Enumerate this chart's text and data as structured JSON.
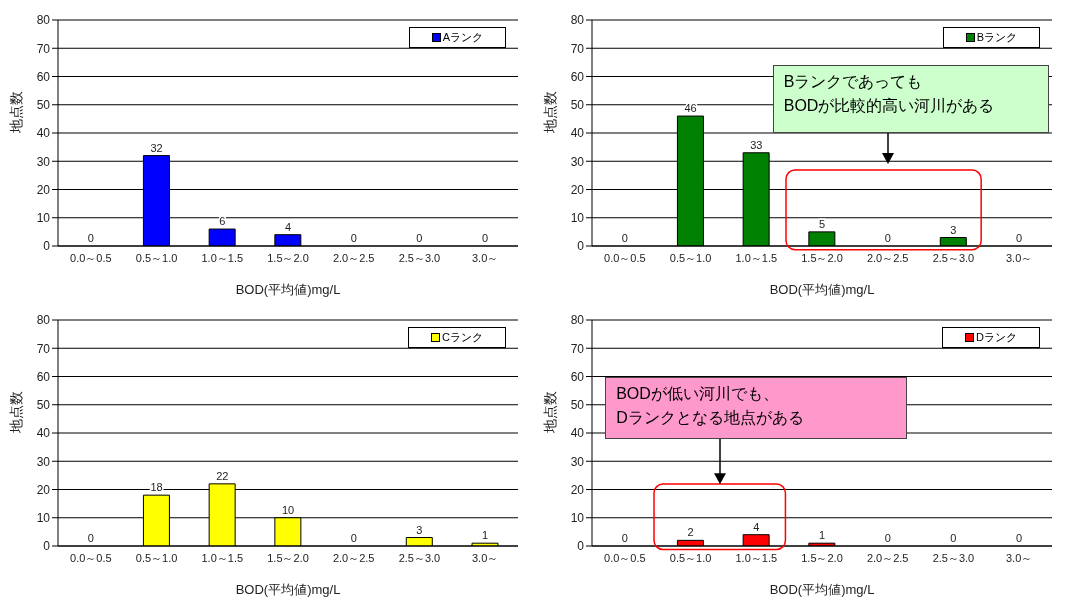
{
  "chart_data": [
    {
      "type": "bar",
      "categories": [
        "0.0～0.5",
        "0.5～1.0",
        "1.0～1.5",
        "1.5～2.0",
        "2.0～2.5",
        "2.5～3.0",
        "3.0～"
      ],
      "series": [
        {
          "name": "Aランク",
          "color": "#0000ff",
          "values": [
            0,
            32,
            6,
            4,
            0,
            0,
            0
          ]
        }
      ],
      "xlabel": "BOD(平均値)mg/L",
      "ylabel": "地点数",
      "ylim": [
        0,
        80
      ],
      "yticks": [
        0,
        10,
        20,
        30,
        40,
        50,
        60,
        70,
        80
      ],
      "grid": "y",
      "legend": "top right",
      "data_labels": true
    },
    {
      "type": "bar",
      "categories": [
        "0.0～0.5",
        "0.5～1.0",
        "1.0～1.5",
        "1.5～2.0",
        "2.0～2.5",
        "2.5～3.0",
        "3.0～"
      ],
      "series": [
        {
          "name": "Bランク",
          "color": "#008000",
          "values": [
            0,
            46,
            33,
            5,
            0,
            3,
            0
          ]
        }
      ],
      "xlabel": "BOD(平均値)mg/L",
      "ylabel": "地点数",
      "ylim": [
        0,
        80
      ],
      "yticks": [
        0,
        10,
        20,
        30,
        40,
        50,
        60,
        70,
        80
      ],
      "grid": "y",
      "legend": "top right",
      "data_labels": true,
      "annotations": [
        "Bランクであっても\nBODが比較的高い河川がある"
      ]
    },
    {
      "type": "bar",
      "categories": [
        "0.0～0.5",
        "0.5～1.0",
        "1.0～1.5",
        "1.5～2.0",
        "2.0～2.5",
        "2.5～3.0",
        "3.0～"
      ],
      "series": [
        {
          "name": "Cランク",
          "color": "#ffff00",
          "values": [
            0,
            18,
            22,
            10,
            0,
            3,
            1
          ]
        }
      ],
      "xlabel": "BOD(平均値)mg/L",
      "ylabel": "地点数",
      "ylim": [
        0,
        80
      ],
      "yticks": [
        0,
        10,
        20,
        30,
        40,
        50,
        60,
        70,
        80
      ],
      "grid": "y",
      "legend": "top right",
      "data_labels": true
    },
    {
      "type": "bar",
      "categories": [
        "0.0～0.5",
        "0.5～1.0",
        "1.0～1.5",
        "1.5～2.0",
        "2.0～2.5",
        "2.5～3.0",
        "3.0～"
      ],
      "series": [
        {
          "name": "Dランク",
          "color": "#ff0000",
          "values": [
            0,
            2,
            4,
            1,
            0,
            0,
            0
          ]
        }
      ],
      "xlabel": "BOD(平均値)mg/L",
      "ylabel": "地点数",
      "ylim": [
        0,
        80
      ],
      "yticks": [
        0,
        10,
        20,
        30,
        40,
        50,
        60,
        70,
        80
      ],
      "grid": "y",
      "legend": "top right",
      "data_labels": true,
      "annotations": [
        "BODが低い河川でも、\nDランクとなる地点がある"
      ]
    }
  ]
}
